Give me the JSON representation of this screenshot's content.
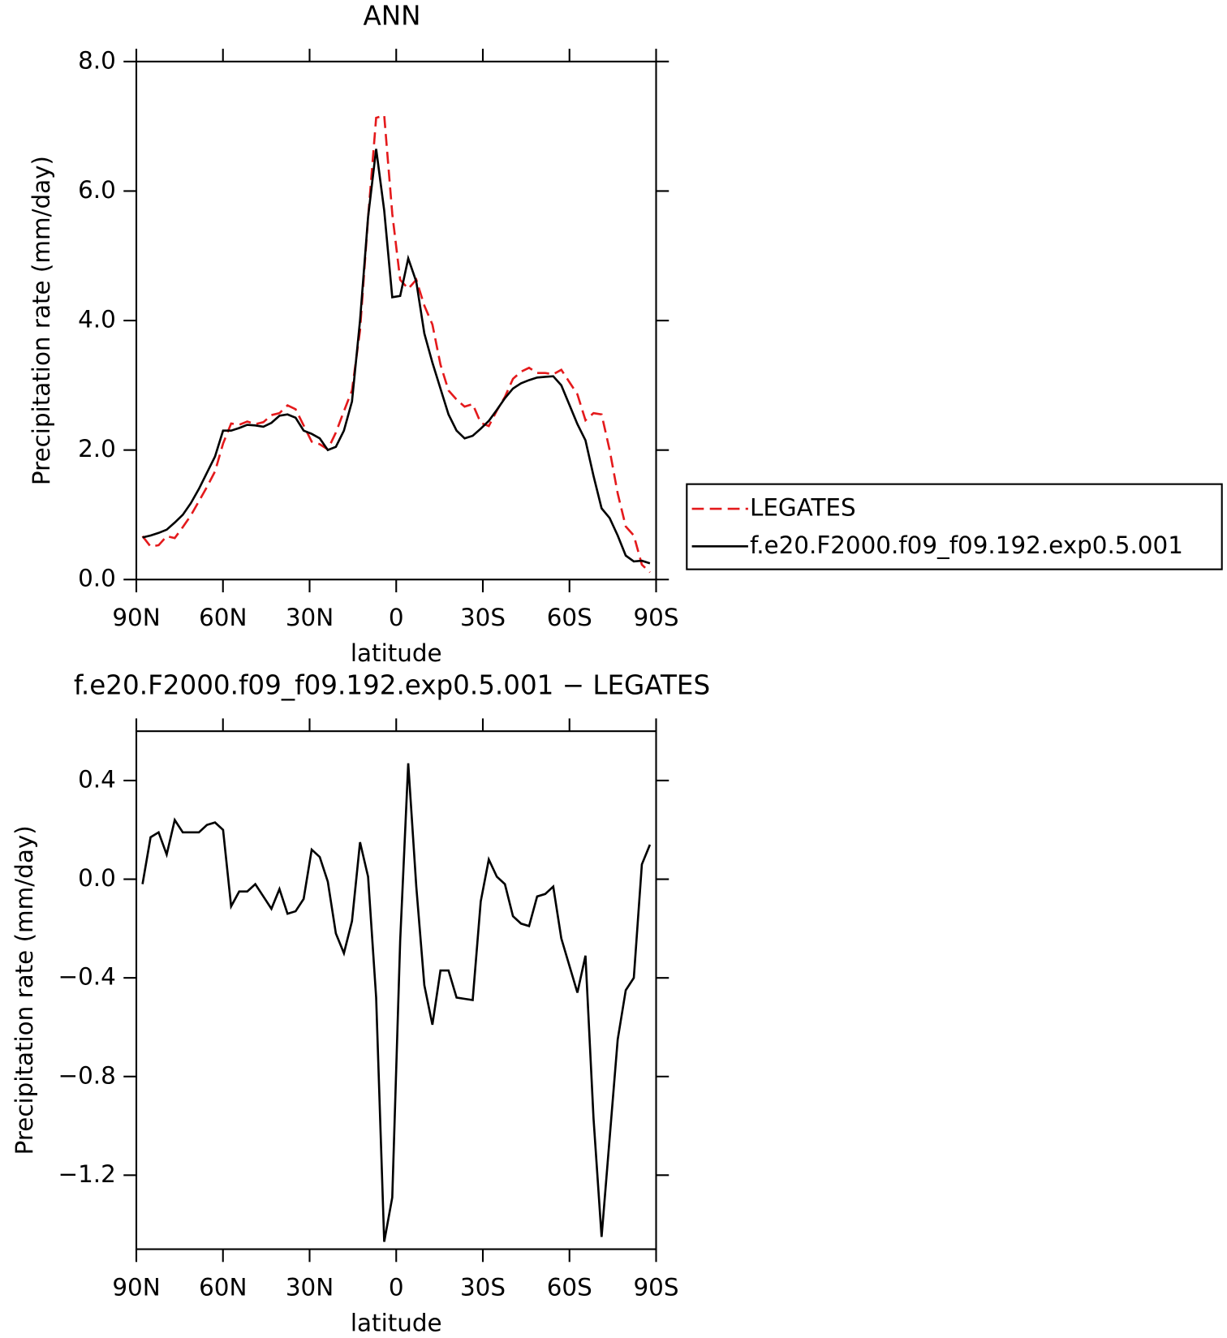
{
  "chart_data": [
    {
      "type": "line",
      "title": "ANN",
      "xlabel": "latitude",
      "ylabel": "Precipitation rate (mm/day)",
      "x": [
        87.86,
        85.07,
        82.28,
        79.49,
        76.7,
        73.91,
        71.12,
        68.33,
        65.54,
        62.75,
        59.96,
        57.17,
        54.38,
        51.59,
        48.8,
        46.01,
        43.22,
        40.43,
        37.64,
        34.85,
        32.06,
        29.27,
        26.48,
        23.69,
        20.9,
        18.11,
        15.32,
        12.53,
        9.74,
        6.95,
        4.16,
        1.37,
        -1.37,
        -4.16,
        -6.95,
        -9.74,
        -12.53,
        -15.32,
        -18.11,
        -20.9,
        -23.69,
        -26.48,
        -29.27,
        -32.06,
        -34.85,
        -37.64,
        -40.43,
        -43.22,
        -46.01,
        -48.8,
        -51.59,
        -54.38,
        -57.17,
        -59.96,
        -62.75,
        -65.54,
        -68.33,
        -71.12,
        -73.91,
        -76.7,
        -79.49,
        -82.28,
        -85.07,
        -87.86
      ],
      "xlim": [
        90,
        -90
      ],
      "xticks": [
        {
          "value": 90,
          "label": "90N"
        },
        {
          "value": 60,
          "label": "60N"
        },
        {
          "value": 30,
          "label": "30N"
        },
        0,
        {
          "value": -30,
          "label": "30S"
        },
        {
          "value": -60,
          "label": "60S"
        },
        {
          "value": -90,
          "label": "90S"
        }
      ],
      "ylim": [
        0,
        8
      ],
      "yticks": [
        {
          "value": 0,
          "label": "0.0"
        },
        {
          "value": 2,
          "label": "2.0"
        },
        {
          "value": 4,
          "label": "4.0"
        },
        {
          "value": 6,
          "label": "6.0"
        },
        {
          "value": 8,
          "label": "8.0"
        }
      ],
      "legend": "right",
      "series": [
        {
          "name": "LEGATES",
          "color": "#e41a1c",
          "line_style": "dashed",
          "values": [
            0.67,
            0.51,
            0.53,
            0.67,
            0.64,
            0.81,
            0.99,
            1.21,
            1.43,
            1.67,
            2.1,
            2.41,
            2.39,
            2.44,
            2.4,
            2.43,
            2.54,
            2.57,
            2.69,
            2.63,
            2.38,
            2.13,
            2.09,
            2.01,
            2.27,
            2.6,
            2.92,
            3.85,
            5.59,
            7.13,
            7.17,
            5.65,
            4.63,
            4.49,
            4.63,
            4.23,
            3.94,
            3.32,
            2.92,
            2.78,
            2.67,
            2.71,
            2.42,
            2.37,
            2.61,
            2.82,
            3.1,
            3.21,
            3.27,
            3.19,
            3.19,
            3.17,
            3.24,
            3.05,
            2.86,
            2.46,
            2.57,
            2.55,
            2.0,
            1.33,
            0.82,
            0.68,
            0.23,
            0.11
          ]
        },
        {
          "name": "f.e20.F2000.f09_f09.192.exp0.5.001",
          "color": "#000000",
          "line_style": "solid",
          "values": [
            0.65,
            0.68,
            0.72,
            0.77,
            0.88,
            1.0,
            1.18,
            1.4,
            1.65,
            1.9,
            2.3,
            2.3,
            2.34,
            2.39,
            2.38,
            2.36,
            2.42,
            2.53,
            2.55,
            2.5,
            2.3,
            2.25,
            2.18,
            2.0,
            2.05,
            2.3,
            2.75,
            4.0,
            5.6,
            6.65,
            5.7,
            4.36,
            4.38,
            4.96,
            4.6,
            3.8,
            3.35,
            2.95,
            2.55,
            2.3,
            2.18,
            2.22,
            2.33,
            2.45,
            2.62,
            2.8,
            2.95,
            3.03,
            3.08,
            3.12,
            3.13,
            3.14,
            3.0,
            2.7,
            2.4,
            2.15,
            1.6,
            1.1,
            0.95,
            0.68,
            0.37,
            0.28,
            0.29,
            0.25
          ]
        }
      ]
    },
    {
      "type": "line",
      "title": "f.e20.F2000.f09_f09.192.exp0.5.001 − LEGATES",
      "xlabel": "latitude",
      "ylabel": "Precipitation rate (mm/day)",
      "x": [
        87.86,
        85.07,
        82.28,
        79.49,
        76.7,
        73.91,
        71.12,
        68.33,
        65.54,
        62.75,
        59.96,
        57.17,
        54.38,
        51.59,
        48.8,
        46.01,
        43.22,
        40.43,
        37.64,
        34.85,
        32.06,
        29.27,
        26.48,
        23.69,
        20.9,
        18.11,
        15.32,
        12.53,
        9.74,
        6.95,
        4.16,
        1.37,
        -1.37,
        -4.16,
        -6.95,
        -9.74,
        -12.53,
        -15.32,
        -18.11,
        -20.9,
        -23.69,
        -26.48,
        -29.27,
        -32.06,
        -34.85,
        -37.64,
        -40.43,
        -43.22,
        -46.01,
        -48.8,
        -51.59,
        -54.38,
        -57.17,
        -59.96,
        -62.75,
        -65.54,
        -68.33,
        -71.12,
        -73.91,
        -76.7,
        -79.49,
        -82.28,
        -85.07,
        -87.86
      ],
      "xlim": [
        90,
        -90
      ],
      "xticks": [
        {
          "value": 90,
          "label": "90N"
        },
        {
          "value": 60,
          "label": "60N"
        },
        {
          "value": 30,
          "label": "30N"
        },
        0,
        {
          "value": -30,
          "label": "30S"
        },
        {
          "value": -60,
          "label": "60S"
        },
        {
          "value": -90,
          "label": "90S"
        }
      ],
      "ylim": [
        -1.5,
        0.6
      ],
      "yticks": [
        {
          "value": -1.2,
          "label": "−1.2"
        },
        {
          "value": -0.8,
          "label": "−0.8"
        },
        {
          "value": -0.4,
          "label": "−0.4"
        },
        {
          "value": 0,
          "label": "0.0"
        },
        0.4
      ],
      "series": [
        {
          "color": "#000000",
          "line_style": "solid",
          "values": [
            -0.02,
            0.17,
            0.19,
            0.1,
            0.24,
            0.19,
            0.19,
            0.19,
            0.22,
            0.23,
            0.2,
            -0.11,
            -0.05,
            -0.05,
            -0.02,
            -0.07,
            -0.12,
            -0.04,
            -0.14,
            -0.13,
            -0.08,
            0.12,
            0.09,
            -0.01,
            -0.22,
            -0.3,
            -0.17,
            0.15,
            0.01,
            -0.48,
            -1.47,
            -1.29,
            -0.25,
            0.47,
            -0.03,
            -0.43,
            -0.59,
            -0.37,
            -0.37,
            -0.48,
            -0.485,
            -0.49,
            -0.09,
            0.08,
            0.01,
            -0.02,
            -0.15,
            -0.18,
            -0.19,
            -0.07,
            -0.06,
            -0.03,
            -0.24,
            -0.35,
            -0.46,
            -0.31,
            -0.97,
            -1.45,
            -1.05,
            -0.65,
            -0.45,
            -0.4,
            0.06,
            0.14
          ]
        }
      ]
    }
  ]
}
